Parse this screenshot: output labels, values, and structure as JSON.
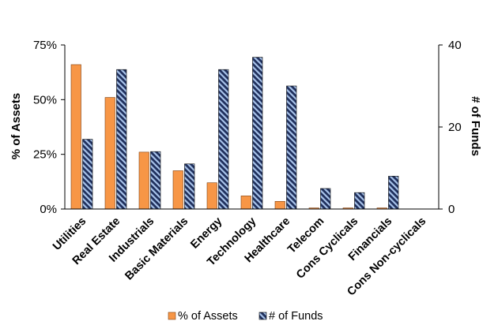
{
  "chart_data": {
    "type": "bar",
    "categories": [
      "Utilities",
      "Real Estate",
      "Industrials",
      "Basic Materials",
      "Energy",
      "Technology",
      "Healthcare",
      "Telecom",
      "Cons Cyclicals",
      "Financials",
      "Cons Non-cyclicals"
    ],
    "series": [
      {
        "name": "% of Assets",
        "axis": "left",
        "color": "#F79646",
        "values": [
          66,
          51,
          26,
          17.5,
          12,
          6,
          3.5,
          0.5,
          0.5,
          0.5,
          0
        ]
      },
      {
        "name": "# of Funds",
        "axis": "right",
        "color": "#4F81BD",
        "pattern": "diagonal-stripes",
        "values": [
          17,
          34,
          14,
          11,
          34,
          37,
          30,
          5,
          4,
          8,
          0
        ]
      }
    ],
    "y_left": {
      "label": "% of Assets",
      "min": 0,
      "max": 75,
      "ticks": [
        "0%",
        "25%",
        "50%",
        "75%"
      ]
    },
    "y_right": {
      "label": "# of Funds",
      "min": 0,
      "max": 40,
      "ticks": [
        "0",
        "20",
        "40"
      ]
    },
    "legend": {
      "position": "bottom",
      "entries": [
        "% of Assets",
        "# of Funds"
      ]
    },
    "grid": false,
    "xlabel": ""
  }
}
